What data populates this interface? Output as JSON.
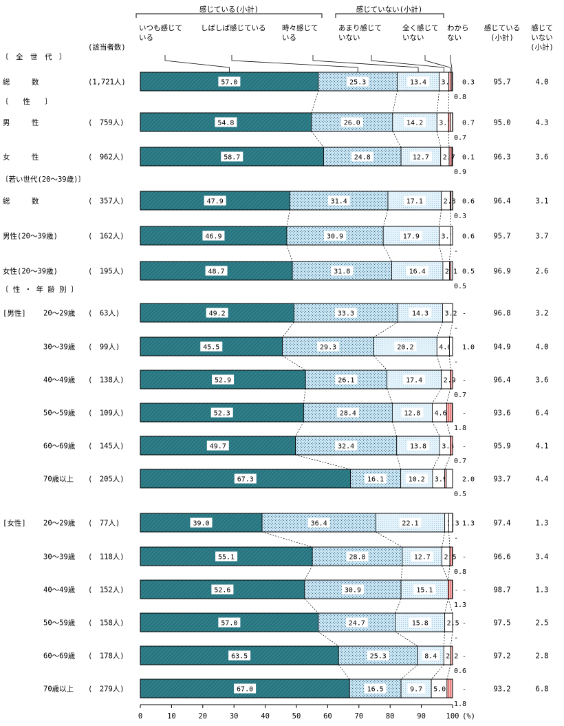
{
  "chart_data": {
    "type": "bar",
    "orientation": "horizontal",
    "stacked": true,
    "unit_label": "(%)",
    "xlim": [
      0,
      100
    ],
    "x_ticks": [
      "0",
      "10",
      "20",
      "30",
      "40",
      "50",
      "60",
      "70",
      "80",
      "90",
      "100"
    ],
    "headers": {
      "group_feel": "感じている(小計)",
      "group_notfeel": "感じていない(小計)",
      "count_header": "(該当者数)",
      "col_feel_subtotal": [
        "感じている",
        "(小計)"
      ],
      "col_notfeel_subtotal": [
        "感じて",
        "いない",
        "(小計)"
      ]
    },
    "series": [
      {
        "name": "いつも感じている",
        "label_lines": [
          "いつも感じて",
          "いる"
        ],
        "color": "#2f7f8a"
      },
      {
        "name": "しばしば感じている",
        "label_lines": [
          "しばしば感じている"
        ],
        "color": "#c8e4f2"
      },
      {
        "name": "時々感じている",
        "label_lines": [
          "時々感じて",
          "いる"
        ],
        "color": "#e4f3fb"
      },
      {
        "name": "あまり感じていない",
        "label_lines": [
          "あまり感じて",
          "いない"
        ],
        "color": "#ffffff"
      },
      {
        "name": "全く感じていない",
        "label_lines": [
          "全く感じて",
          "いない"
        ],
        "color": "#f5b5b5"
      },
      {
        "name": "わからない",
        "label_lines": [
          "わから",
          "ない"
        ],
        "color": "#ffffff"
      }
    ],
    "sections": [
      {
        "label": "〔　全　世　代　〕"
      },
      {
        "label": "〔　　性　　〕"
      },
      {
        "label": "〔若い世代(20～39歳)〕"
      },
      {
        "label": "〔 性 ・ 年 齢 別 〕"
      }
    ],
    "rows": [
      {
        "label": "総　　　数",
        "group": "",
        "count": "(1,721人)",
        "values": [
          57.0,
          25.3,
          13.4,
          3.1,
          0.8,
          0.3
        ],
        "labels": [
          "57.0",
          "25.3",
          "13.4",
          "3.1",
          "0.8",
          "0.3"
        ],
        "feel": "95.7",
        "notfeel": "4.0"
      },
      {
        "label": "男　　　性",
        "group": "",
        "count": "(　759人)",
        "values": [
          54.8,
          26.0,
          14.2,
          3.7,
          0.7,
          0.7
        ],
        "labels": [
          "54.8",
          "26.0",
          "14.2",
          "3.7",
          "0.7",
          "0.7"
        ],
        "feel": "95.0",
        "notfeel": "4.3"
      },
      {
        "label": "女　　　性",
        "group": "",
        "count": "(　962人)",
        "values": [
          58.7,
          24.8,
          12.7,
          2.7,
          0.9,
          0.1
        ],
        "labels": [
          "58.7",
          "24.8",
          "12.7",
          "2.7",
          "0.9",
          "0.1"
        ],
        "feel": "96.3",
        "notfeel": "3.6"
      },
      {
        "label": "総　　　数",
        "group": "",
        "count": "(　357人)",
        "values": [
          47.9,
          31.4,
          17.1,
          2.8,
          0.3,
          0.6
        ],
        "labels": [
          "47.9",
          "31.4",
          "17.1",
          "2.8",
          "0.3",
          "0.6"
        ],
        "feel": "96.4",
        "notfeel": "3.1"
      },
      {
        "label": "男性(20～39歳)",
        "group": "",
        "count": "(　162人)",
        "values": [
          46.9,
          30.9,
          17.9,
          3.7,
          0.0,
          0.6
        ],
        "labels": [
          "46.9",
          "30.9",
          "17.9",
          "3.7",
          "-",
          "0.6"
        ],
        "feel": "95.7",
        "notfeel": "3.7"
      },
      {
        "label": "女性(20～39歳)",
        "group": "",
        "count": "(　195人)",
        "values": [
          48.7,
          31.8,
          16.4,
          2.1,
          0.5,
          0.5
        ],
        "labels": [
          "48.7",
          "31.8",
          "16.4",
          "2.1",
          "0.5",
          "0.5"
        ],
        "feel": "96.9",
        "notfeel": "2.6"
      },
      {
        "label": "20～29歳",
        "group": "[男性]",
        "count": "(　63人)",
        "values": [
          49.2,
          33.3,
          14.3,
          3.2,
          0.0,
          0.0
        ],
        "labels": [
          "49.2",
          "33.3",
          "14.3",
          "3.2",
          "-",
          "-"
        ],
        "feel": "96.8",
        "notfeel": "3.2"
      },
      {
        "label": "30～39歳",
        "group": "",
        "count": "(　99人)",
        "values": [
          45.5,
          29.3,
          20.2,
          4.0,
          0.0,
          1.0
        ],
        "labels": [
          "45.5",
          "29.3",
          "20.2",
          "4.0",
          "-",
          "1.0"
        ],
        "feel": "94.9",
        "notfeel": "4.0"
      },
      {
        "label": "40～49歳",
        "group": "",
        "count": "(　138人)",
        "values": [
          52.9,
          26.1,
          17.4,
          2.9,
          0.7,
          0.0
        ],
        "labels": [
          "52.9",
          "26.1",
          "17.4",
          "2.9",
          "0.7",
          "-"
        ],
        "feel": "96.4",
        "notfeel": "3.6"
      },
      {
        "label": "50～59歳",
        "group": "",
        "count": "(　109人)",
        "values": [
          52.3,
          28.4,
          12.8,
          4.6,
          1.8,
          0.0
        ],
        "labels": [
          "52.3",
          "28.4",
          "12.8",
          "4.6",
          "1.8",
          "-"
        ],
        "feel": "93.6",
        "notfeel": "6.4"
      },
      {
        "label": "60～69歳",
        "group": "",
        "count": "(　145人)",
        "values": [
          49.7,
          32.4,
          13.8,
          3.4,
          0.7,
          0.0
        ],
        "labels": [
          "49.7",
          "32.4",
          "13.8",
          "3.4",
          "0.7",
          "-"
        ],
        "feel": "95.9",
        "notfeel": "4.1"
      },
      {
        "label": "70歳以上",
        "group": "",
        "count": "(　205人)",
        "values": [
          67.3,
          16.1,
          10.2,
          3.9,
          0.5,
          2.0
        ],
        "labels": [
          "67.3",
          "16.1",
          "10.2",
          "3.9",
          "0.5",
          "2.0"
        ],
        "feel": "93.7",
        "notfeel": "4.4"
      },
      {
        "label": "20～29歳",
        "group": "[女性]",
        "count": "(　77人)",
        "values": [
          39.0,
          36.4,
          22.1,
          1.3,
          0.0,
          1.3
        ],
        "labels": [
          "39.0",
          "36.4",
          "22.1",
          "1.3",
          "-",
          "1.3"
        ],
        "feel": "97.4",
        "notfeel": "1.3"
      },
      {
        "label": "30～39歳",
        "group": "",
        "count": "(　118人)",
        "values": [
          55.1,
          28.8,
          12.7,
          2.5,
          0.8,
          0.0
        ],
        "labels": [
          "55.1",
          "28.8",
          "12.7",
          "2.5",
          "0.8",
          "-"
        ],
        "feel": "96.6",
        "notfeel": "3.4"
      },
      {
        "label": "40～49歳",
        "group": "",
        "count": "(　152人)",
        "values": [
          52.6,
          30.9,
          15.1,
          0.0,
          1.3,
          0.0
        ],
        "labels": [
          "52.6",
          "30.9",
          "15.1",
          "-",
          "1.3",
          "-"
        ],
        "feel": "98.7",
        "notfeel": "1.3"
      },
      {
        "label": "50～59歳",
        "group": "",
        "count": "(　158人)",
        "values": [
          57.0,
          24.7,
          15.8,
          2.5,
          0.0,
          0.0
        ],
        "labels": [
          "57.0",
          "24.7",
          "15.8",
          "2.5",
          "-",
          "-"
        ],
        "feel": "97.5",
        "notfeel": "2.5"
      },
      {
        "label": "60～69歳",
        "group": "",
        "count": "(　178人)",
        "values": [
          63.5,
          25.3,
          8.4,
          2.2,
          0.6,
          0.0
        ],
        "labels": [
          "63.5",
          "25.3",
          "8.4",
          "2.2",
          "0.6",
          "-"
        ],
        "feel": "97.2",
        "notfeel": "2.8"
      },
      {
        "label": "70歳以上",
        "group": "",
        "count": "(　279人)",
        "values": [
          67.0,
          16.5,
          9.7,
          5.0,
          1.8,
          0.0
        ],
        "labels": [
          "67.0",
          "16.5",
          "9.7",
          "5.0",
          "1.8",
          "-"
        ],
        "feel": "93.2",
        "notfeel": "6.8"
      }
    ]
  }
}
